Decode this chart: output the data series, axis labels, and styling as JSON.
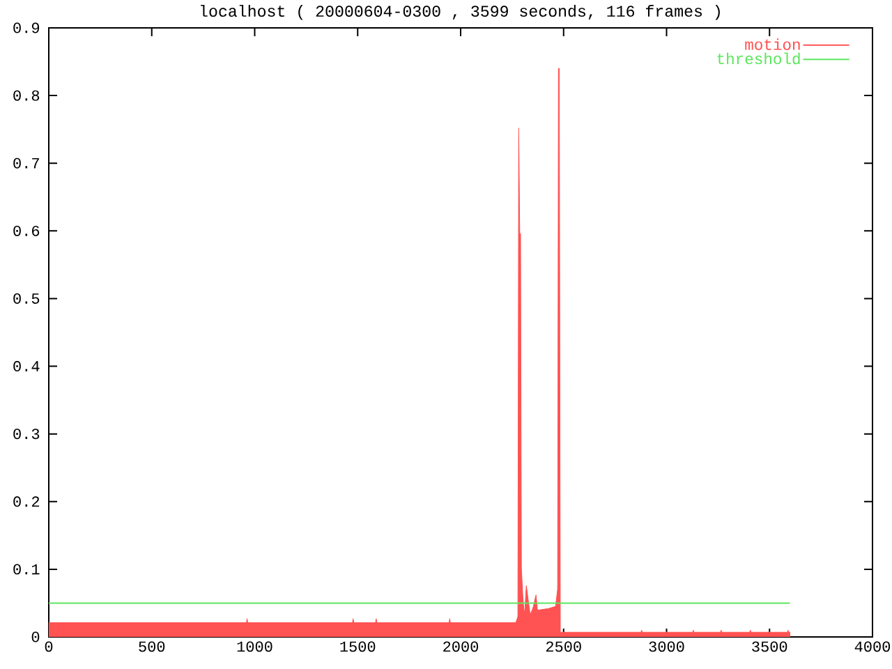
{
  "chart_data": {
    "type": "area",
    "title": "localhost ( 20000604-0300 , 3599 seconds, 116 frames )",
    "xlim": [
      0,
      4000
    ],
    "ylim": [
      0,
      0.9
    ],
    "xticks": [
      0,
      500,
      1000,
      1500,
      2000,
      2500,
      3000,
      3500,
      4000
    ],
    "yticks": [
      0,
      0.1,
      0.2,
      0.3,
      0.4,
      0.5,
      0.6,
      0.7,
      0.8,
      0.9
    ],
    "legend": "top right",
    "series": [
      {
        "name": "motion",
        "color": "#ff5252",
        "x": [
          0,
          960,
          963,
          966,
          1475,
          1478,
          1481,
          1587,
          1590,
          1593,
          1944,
          1947,
          1950,
          2268,
          2278,
          2282,
          2287,
          2291,
          2295,
          2302,
          2310,
          2319,
          2330,
          2337,
          2342,
          2353,
          2366,
          2373,
          2382,
          2427,
          2461,
          2471,
          2475,
          2479,
          2484,
          2876,
          2879,
          2882,
          3127,
          3130,
          3133,
          3262,
          3265,
          3268,
          3404,
          3407,
          3410,
          3587,
          3590,
          3593,
          3599
        ],
        "values": [
          0.021,
          0.021,
          0.027,
          0.021,
          0.021,
          0.027,
          0.021,
          0.021,
          0.027,
          0.021,
          0.021,
          0.027,
          0.021,
          0.021,
          0.03,
          0.752,
          0.596,
          0.596,
          0.102,
          0.06,
          0.03,
          0.076,
          0.05,
          0.035,
          0.035,
          0.045,
          0.062,
          0.04,
          0.04,
          0.042,
          0.045,
          0.071,
          0.84,
          0.84,
          0.007,
          0.007,
          0.01,
          0.007,
          0.007,
          0.01,
          0.007,
          0.007,
          0.01,
          0.007,
          0.007,
          0.01,
          0.007,
          0.007,
          0.01,
          0.007,
          0.007
        ]
      },
      {
        "name": "threshold",
        "type": "line",
        "color": "#5ce65c",
        "x": [
          0,
          3599
        ],
        "values": [
          0.05,
          0.05
        ]
      }
    ]
  }
}
